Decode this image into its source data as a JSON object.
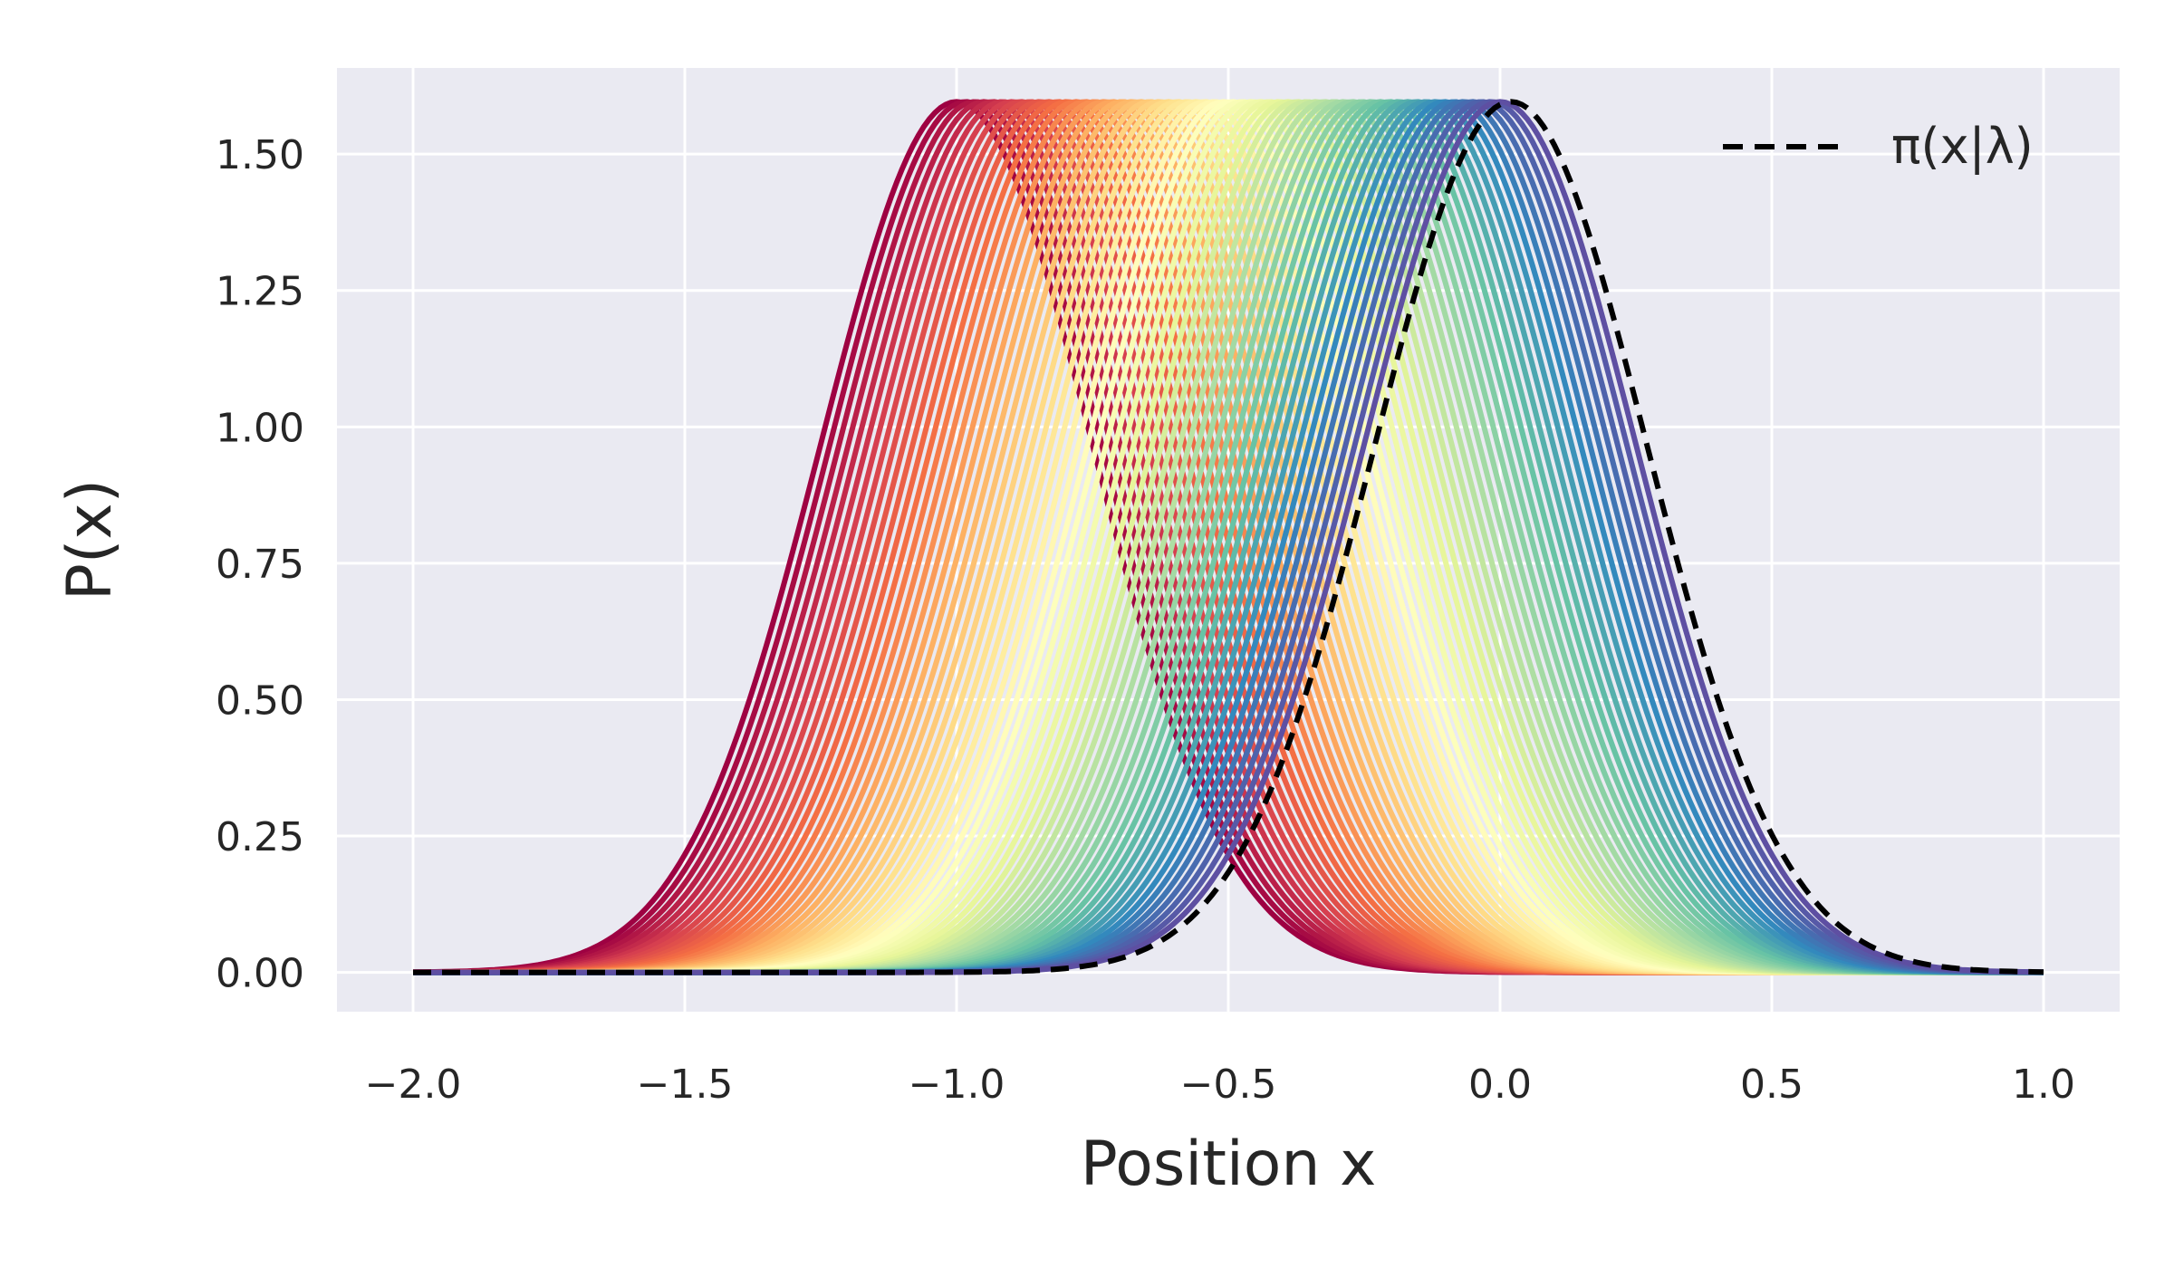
{
  "chart_data": {
    "type": "line",
    "xlabel": "Position x",
    "ylabel": "P(x)",
    "xlim": [
      -2.14,
      1.14
    ],
    "ylim": [
      -0.072,
      1.658
    ],
    "x_ticks": [
      -2.0,
      -1.5,
      -1.0,
      -0.5,
      0.0,
      0.5,
      1.0
    ],
    "x_tick_labels": [
      "−2.0",
      "−1.5",
      "−1.0",
      "−0.5",
      "0.0",
      "0.5",
      "1.0"
    ],
    "y_ticks": [
      0.0,
      0.25,
      0.5,
      0.75,
      1.0,
      1.25,
      1.5
    ],
    "y_tick_labels": [
      "0.00",
      "0.25",
      "0.50",
      "0.75",
      "1.00",
      "1.25",
      "1.50"
    ],
    "grid": true,
    "background": "#eaeaf2",
    "x_domain": [
      -2.0,
      1.0
    ],
    "density_peak": 1.596,
    "density_width": 0.25,
    "series_count": 60,
    "series_means_range": [
      -1.0,
      0.0
    ],
    "series_colormap": [
      "#9e0142",
      "#d53e4f",
      "#f46d43",
      "#fdae61",
      "#fee08b",
      "#ffffbf",
      "#e6f598",
      "#abdda4",
      "#66c2a5",
      "#3288bd",
      "#5e4fa2"
    ],
    "reference_series": {
      "label": "π(x|λ)",
      "mean": 0.02,
      "style": "dashed",
      "color": "#000000"
    },
    "legend_position": "top-right"
  }
}
